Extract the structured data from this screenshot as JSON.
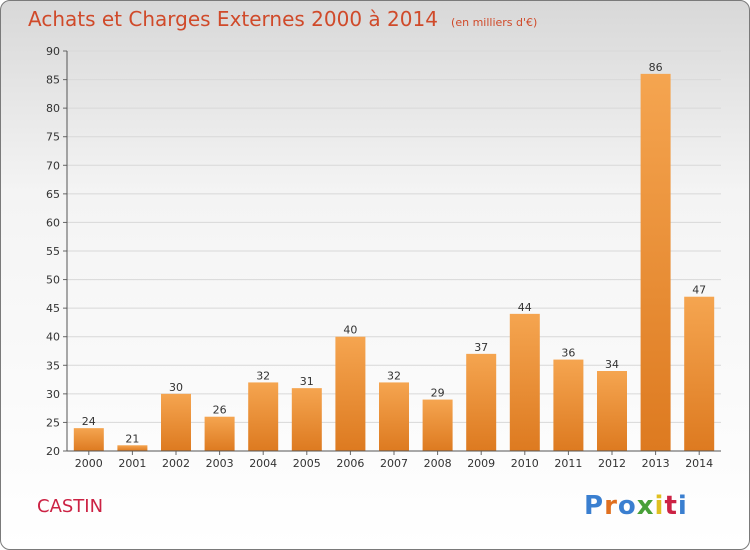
{
  "header": {
    "title": "Achats et Charges Externes 2000 à 2014",
    "unit": "(en milliers d'€)"
  },
  "footer": {
    "commune": "CASTIN",
    "logo": "Proxiti",
    "logo_colors": [
      "#3a7fd0",
      "#e07020",
      "#3a7fd0",
      "#48a038",
      "#e0c020",
      "#cc2244",
      "#3a7fd0"
    ]
  },
  "colors": {
    "bar_top": "#f5a550",
    "bar_bottom": "#dd7a20",
    "grid": "#d8d8d8",
    "title": "#d04a2a",
    "commune": "#cc2244"
  },
  "chart_data": {
    "type": "bar",
    "categories": [
      "2000",
      "2001",
      "2002",
      "2003",
      "2004",
      "2005",
      "2006",
      "2007",
      "2008",
      "2009",
      "2010",
      "2011",
      "2012",
      "2013",
      "2014"
    ],
    "values": [
      24,
      21,
      30,
      26,
      32,
      31,
      40,
      32,
      29,
      37,
      44,
      36,
      34,
      86,
      47
    ],
    "ylim": [
      20,
      90
    ],
    "yticks": [
      20,
      25,
      30,
      35,
      40,
      45,
      50,
      55,
      60,
      65,
      70,
      75,
      80,
      85,
      90
    ],
    "grid": true,
    "title": "Achats et Charges Externes 2000 à 2014",
    "xlabel": "",
    "ylabel": ""
  }
}
